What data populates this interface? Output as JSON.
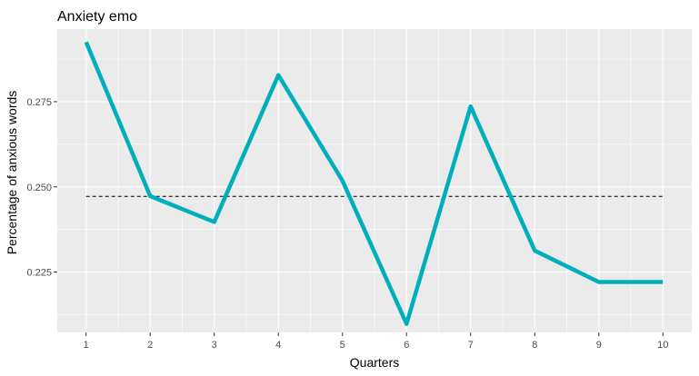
{
  "chart_data": {
    "type": "line",
    "title": "Anxiety emo",
    "xlabel": "Quarters",
    "ylabel": "Percentage of anxious words",
    "x": [
      1,
      2,
      3,
      4,
      5,
      6,
      7,
      8,
      9,
      10
    ],
    "x_tick_labels": [
      "1",
      "2",
      "3",
      "4",
      "5",
      "6",
      "7",
      "8",
      "9",
      "10"
    ],
    "y_ticks": [
      0.225,
      0.25,
      0.275
    ],
    "y_tick_labels": [
      "0.225",
      "0.250",
      "0.275"
    ],
    "xlim": [
      0.55,
      10.45
    ],
    "ylim": [
      0.2073,
      0.2963
    ],
    "series": [
      {
        "values": [
          0.2925,
          0.2473,
          0.2397,
          0.2828,
          0.2518,
          0.2098,
          0.2736,
          0.2313,
          0.2221,
          0.2221
        ],
        "color": "#00AFBB"
      }
    ],
    "reference_line": {
      "y": 0.2472,
      "style": "dashed",
      "color": "#000000"
    },
    "grid": true,
    "panel_background": "#EBEBEB",
    "grid_color": "#FFFFFF"
  }
}
